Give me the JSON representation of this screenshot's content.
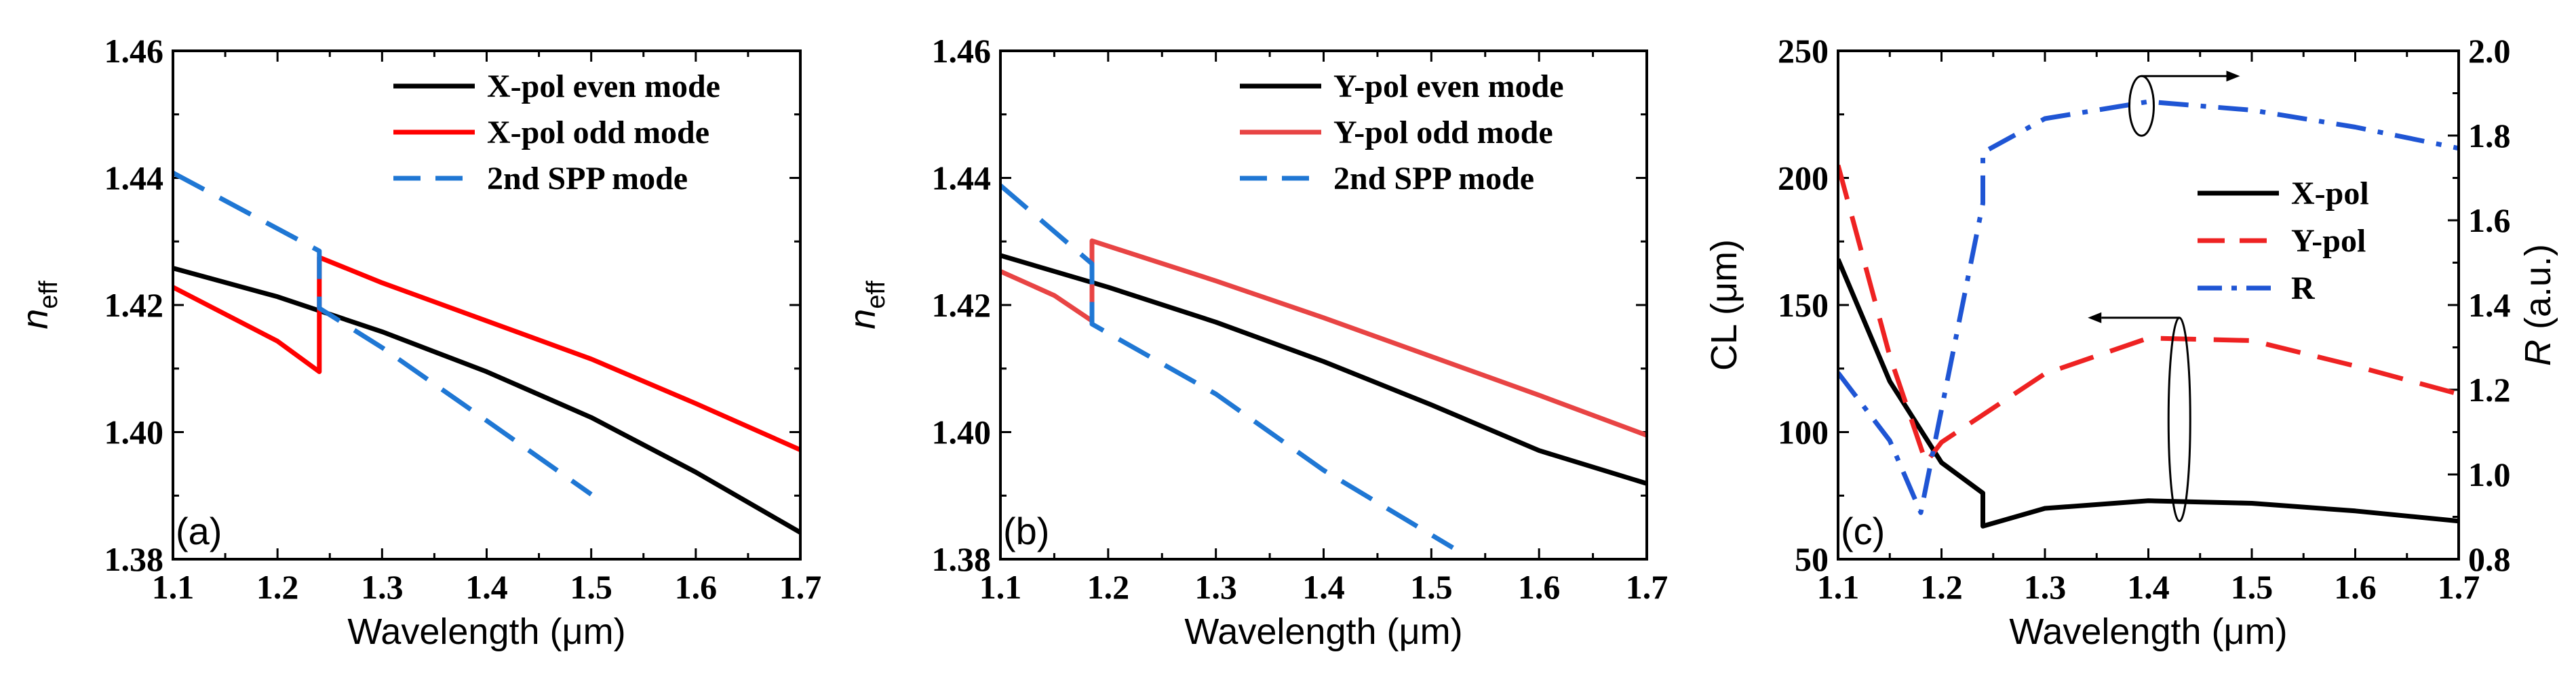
{
  "chart_data": [
    {
      "type": "line",
      "panel_label": "(a)",
      "xlabel": "Wavelength (μm)",
      "ylabel_main": "n",
      "ylabel_sub": "eff",
      "xlim": [
        1.1,
        1.7
      ],
      "ylim": [
        1.38,
        1.46
      ],
      "xticks": [
        "1.1",
        "1.2",
        "1.3",
        "1.4",
        "1.5",
        "1.6",
        "1.7"
      ],
      "yticks": [
        "1.38",
        "1.40",
        "1.42",
        "1.44",
        "1.46"
      ],
      "legend_position": "top-right",
      "series": [
        {
          "name": "X-pol even mode",
          "color": "#000000",
          "style": "solid",
          "x": [
            1.1,
            1.2,
            1.3,
            1.4,
            1.5,
            1.6,
            1.7
          ],
          "y": [
            1.4258,
            1.4213,
            1.4158,
            1.4095,
            1.4023,
            1.3937,
            1.3842
          ]
        },
        {
          "name": "X-pol odd mode",
          "color": "#ff0000",
          "style": "solid",
          "x": [
            1.1,
            1.2,
            1.24,
            1.24,
            1.3,
            1.4,
            1.5,
            1.6,
            1.7
          ],
          "y": [
            1.4228,
            1.4143,
            1.4095,
            1.4275,
            1.4235,
            1.4175,
            1.4115,
            1.4045,
            1.3972
          ]
        },
        {
          "name": "2nd SPP mode",
          "color": "#1f77d4",
          "style": "dashed",
          "x": [
            1.1,
            1.24,
            1.24,
            1.3,
            1.4,
            1.5
          ],
          "y": [
            1.4408,
            1.4285,
            1.4195,
            1.4133,
            1.4018,
            1.3902
          ]
        }
      ]
    },
    {
      "type": "line",
      "panel_label": "(b)",
      "xlabel": "Wavelength (μm)",
      "ylabel_main": "n",
      "ylabel_sub": "eff",
      "xlim": [
        1.1,
        1.7
      ],
      "ylim": [
        1.38,
        1.46
      ],
      "xticks": [
        "1.1",
        "1.2",
        "1.3",
        "1.4",
        "1.5",
        "1.6",
        "1.7"
      ],
      "yticks": [
        "1.38",
        "1.40",
        "1.42",
        "1.44",
        "1.46"
      ],
      "legend_position": "top-right",
      "series": [
        {
          "name": "Y-pol even mode",
          "color": "#000000",
          "style": "solid",
          "x": [
            1.1,
            1.2,
            1.3,
            1.4,
            1.5,
            1.6,
            1.7
          ],
          "y": [
            1.4278,
            1.4228,
            1.4173,
            1.4111,
            1.4043,
            1.3971,
            1.3919
          ]
        },
        {
          "name": "Y-pol odd mode",
          "color": "#e84444",
          "style": "solid",
          "x": [
            1.1,
            1.15,
            1.185,
            1.185,
            1.3,
            1.4,
            1.5,
            1.6,
            1.7
          ],
          "y": [
            1.4253,
            1.4215,
            1.4175,
            1.4301,
            1.4238,
            1.418,
            1.4119,
            1.4058,
            1.3995
          ]
        },
        {
          "name": "2nd SPP mode",
          "color": "#1f77d4",
          "style": "dashed",
          "x": [
            1.1,
            1.185,
            1.185,
            1.3,
            1.4,
            1.52
          ],
          "y": [
            1.4388,
            1.4265,
            1.417,
            1.406,
            1.394,
            1.3818
          ]
        }
      ]
    },
    {
      "type": "line",
      "panel_label": "(c)",
      "xlabel": "Wavelength (μm)",
      "ylabel_left": "CL (μm)",
      "ylabel_right_main": "R",
      "ylabel_right_unit": " (a.u.)",
      "xlim": [
        1.1,
        1.7
      ],
      "ylim_left": [
        50,
        250
      ],
      "ylim_right": [
        0.8,
        2.0
      ],
      "xticks": [
        "1.1",
        "1.2",
        "1.3",
        "1.4",
        "1.5",
        "1.6",
        "1.7"
      ],
      "yticks_left": [
        "50",
        "100",
        "150",
        "200",
        "250"
      ],
      "yticks_right": [
        "0.8",
        "1.0",
        "1.2",
        "1.4",
        "1.6",
        "1.8",
        "2.0"
      ],
      "legend_position": "center-right",
      "series": [
        {
          "name": "X-pol",
          "color": "#000000",
          "style": "solid",
          "axis": "left",
          "x": [
            1.1,
            1.15,
            1.2,
            1.24,
            1.24,
            1.3,
            1.4,
            1.5,
            1.6,
            1.7
          ],
          "y": [
            168,
            120,
            88,
            76,
            63,
            70,
            73,
            72,
            69,
            65
          ]
        },
        {
          "name": "Y-pol",
          "color": "#ee2222",
          "style": "dashed",
          "axis": "left",
          "x": [
            1.1,
            1.15,
            1.185,
            1.2,
            1.3,
            1.4,
            1.5,
            1.6,
            1.7
          ],
          "y": [
            205,
            130,
            88,
            96,
            123,
            137,
            136,
            126,
            115
          ]
        },
        {
          "name": "R",
          "color": "#1f55d4",
          "style": "dashdot",
          "axis": "right",
          "x": [
            1.1,
            1.15,
            1.18,
            1.24,
            1.24,
            1.3,
            1.4,
            1.5,
            1.6,
            1.7
          ],
          "y": [
            1.24,
            1.08,
            0.91,
            1.64,
            1.76,
            1.84,
            1.88,
            1.86,
            1.82,
            1.77
          ]
        }
      ]
    }
  ]
}
